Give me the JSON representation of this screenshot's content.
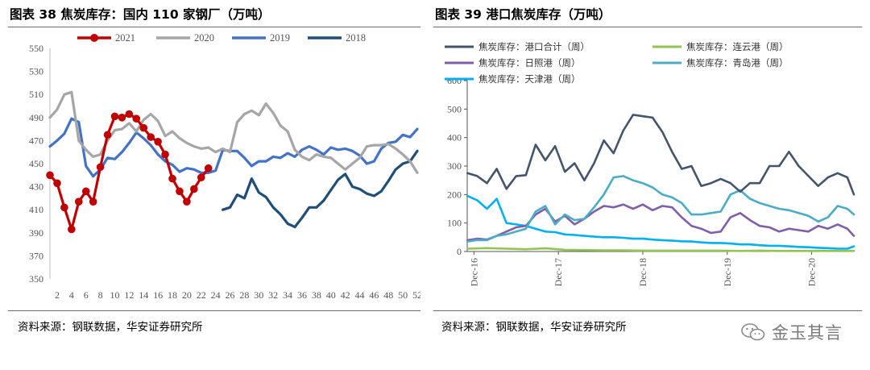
{
  "left": {
    "title": "图表 38  焦炭库存：国内 110 家钢厂（万吨）",
    "source": "资料来源：钢联数据，华安证券研究所"
  },
  "right": {
    "title": "图表 39  港口焦炭库存（万吨）",
    "source": "资料来源：钢联数据，华安证券研究所"
  },
  "watermark": {
    "text": "金玉其言",
    "icon": "wechat-icon"
  },
  "chart_data": [
    {
      "type": "line",
      "ylim": [
        350,
        550
      ],
      "yticks": [
        350,
        370,
        390,
        410,
        430,
        450,
        470,
        490,
        510,
        530,
        550
      ],
      "xlim": [
        1,
        52
      ],
      "xticks": [
        2,
        4,
        6,
        8,
        10,
        12,
        14,
        16,
        18,
        20,
        22,
        24,
        26,
        28,
        30,
        32,
        34,
        36,
        38,
        40,
        42,
        44,
        46,
        48,
        50,
        52
      ],
      "legend_position": "top",
      "series": [
        {
          "name": "2021",
          "color": "#c00000",
          "marker": "circle",
          "x": [
            1,
            2,
            3,
            4,
            5,
            6,
            7,
            8,
            9,
            10,
            11,
            12,
            13,
            14,
            15,
            16,
            17,
            18,
            19,
            20,
            21,
            22,
            23
          ],
          "y": [
            440,
            433,
            412,
            393,
            417,
            426,
            417,
            447,
            475,
            491,
            490,
            493,
            489,
            481,
            473,
            469,
            458,
            437,
            426,
            417,
            428,
            438,
            446
          ]
        },
        {
          "name": "2020",
          "color": "#a6a6a6",
          "marker": "none",
          "x": [
            1,
            2,
            3,
            4,
            5,
            6,
            7,
            8,
            9,
            10,
            11,
            12,
            13,
            14,
            15,
            16,
            17,
            18,
            19,
            20,
            21,
            22,
            23,
            24,
            25,
            26,
            27,
            28,
            29,
            30,
            31,
            32,
            33,
            34,
            35,
            36,
            37,
            38,
            39,
            40,
            41,
            42,
            43,
            44,
            45,
            46,
            47,
            48,
            49,
            50,
            51,
            52
          ],
          "y": [
            490,
            497,
            510,
            512,
            470,
            462,
            456,
            458,
            470,
            479,
            480,
            485,
            478,
            488,
            493,
            487,
            474,
            478,
            472,
            468,
            465,
            463,
            464,
            460,
            463,
            460,
            486,
            493,
            496,
            492,
            502,
            494,
            483,
            478,
            462,
            456,
            453,
            458,
            456,
            455,
            450,
            445,
            450,
            455,
            465,
            466,
            466,
            467,
            463,
            458,
            452,
            442
          ]
        },
        {
          "name": "2019",
          "color": "#4472c4",
          "marker": "none",
          "x": [
            1,
            2,
            3,
            4,
            5,
            6,
            7,
            8,
            9,
            10,
            11,
            12,
            13,
            14,
            15,
            16,
            17,
            18,
            19,
            20,
            21,
            22,
            23,
            24,
            25,
            26,
            27,
            28,
            29,
            30,
            31,
            32,
            33,
            34,
            35,
            36,
            37,
            38,
            39,
            40,
            41,
            42,
            43,
            44,
            45,
            46,
            47,
            48,
            49,
            50,
            51,
            52
          ],
          "y": [
            465,
            470,
            476,
            489,
            486,
            448,
            439,
            445,
            455,
            454,
            460,
            468,
            477,
            472,
            466,
            458,
            452,
            449,
            443,
            446,
            445,
            442,
            442,
            444,
            462,
            461,
            461,
            455,
            448,
            452,
            452,
            456,
            455,
            459,
            456,
            462,
            465,
            462,
            458,
            464,
            462,
            463,
            461,
            457,
            450,
            452,
            463,
            468,
            469,
            475,
            473,
            480
          ]
        },
        {
          "name": "2018",
          "color": "#1f4e79",
          "marker": "none",
          "x": [
            25,
            26,
            27,
            28,
            29,
            30,
            31,
            32,
            33,
            34,
            35,
            36,
            37,
            38,
            39,
            40,
            41,
            42,
            43,
            44,
            45,
            46,
            47,
            48,
            49,
            50,
            51,
            52
          ],
          "y": [
            410,
            412,
            423,
            420,
            437,
            425,
            421,
            412,
            406,
            398,
            395,
            403,
            412,
            412,
            418,
            427,
            436,
            441,
            430,
            428,
            424,
            422,
            426,
            435,
            445,
            450,
            452,
            461
          ]
        }
      ]
    },
    {
      "type": "line",
      "ylim": [
        0,
        600
      ],
      "yticks": [
        0,
        100,
        200,
        300,
        400,
        500,
        600
      ],
      "x_tick_labels": [
        "Dec-16",
        "Dec-17",
        "Dec-18",
        "Dec-19",
        "Dec-20"
      ],
      "x_tick_dates": [
        "2016-12-30",
        "2017-12-29",
        "2018-12-28",
        "2019-12-27",
        "2020-12-25"
      ],
      "x_range": [
        "2016-12-01",
        "2021-06-25"
      ],
      "legend_position": "top",
      "series": [
        {
          "name": "焦炭库存：港口合计（周）",
          "color": "#44546a",
          "x": [
            "2016-12-02",
            "2017-01-13",
            "2017-02-24",
            "2017-04-07",
            "2017-05-19",
            "2017-06-30",
            "2017-08-11",
            "2017-09-22",
            "2017-11-03",
            "2017-12-15",
            "2018-01-26",
            "2018-03-09",
            "2018-04-20",
            "2018-06-01",
            "2018-07-13",
            "2018-08-24",
            "2018-10-05",
            "2018-11-16",
            "2018-12-28",
            "2019-02-08",
            "2019-03-22",
            "2019-05-03",
            "2019-06-14",
            "2019-07-26",
            "2019-09-06",
            "2019-10-18",
            "2019-11-29",
            "2020-01-10",
            "2020-02-21",
            "2020-04-03",
            "2020-05-15",
            "2020-06-26",
            "2020-08-07",
            "2020-09-18",
            "2020-10-30",
            "2020-12-11",
            "2021-01-22",
            "2021-03-05",
            "2021-04-16",
            "2021-05-28",
            "2021-06-25"
          ],
          "y": [
            275,
            265,
            240,
            290,
            220,
            265,
            268,
            375,
            320,
            370,
            280,
            310,
            250,
            310,
            390,
            345,
            425,
            480,
            475,
            470,
            420,
            350,
            290,
            300,
            230,
            240,
            255,
            240,
            210,
            240,
            240,
            300,
            300,
            350,
            300,
            265,
            230,
            260,
            275,
            260,
            200
          ]
        },
        {
          "name": "焦炭库存：连云港（周）",
          "color": "#92c353",
          "x": [
            "2016-12-02",
            "2017-02-24",
            "2017-05-19",
            "2017-08-11",
            "2017-11-03",
            "2018-01-26",
            "2018-04-20",
            "2018-07-13",
            "2018-10-05",
            "2018-12-28",
            "2019-03-22",
            "2019-06-14",
            "2019-09-06",
            "2019-11-29",
            "2020-02-21",
            "2020-05-15",
            "2020-08-07",
            "2020-10-30",
            "2021-01-22",
            "2021-04-16",
            "2021-06-25"
          ],
          "y": [
            10,
            12,
            10,
            8,
            11,
            6,
            5,
            4,
            4,
            3,
            3,
            3,
            3,
            3,
            2,
            3,
            2,
            2,
            2,
            2,
            2
          ]
        },
        {
          "name": "焦炭库存：日照港（周）",
          "color": "#7f5fa9",
          "x": [
            "2016-12-02",
            "2017-01-13",
            "2017-02-24",
            "2017-04-07",
            "2017-05-19",
            "2017-06-30",
            "2017-08-11",
            "2017-09-22",
            "2017-11-03",
            "2017-12-15",
            "2018-01-26",
            "2018-03-09",
            "2018-04-20",
            "2018-06-01",
            "2018-07-13",
            "2018-08-24",
            "2018-10-05",
            "2018-11-16",
            "2018-12-28",
            "2019-02-08",
            "2019-03-22",
            "2019-05-03",
            "2019-06-14",
            "2019-07-26",
            "2019-09-06",
            "2019-10-18",
            "2019-11-29",
            "2020-01-10",
            "2020-02-21",
            "2020-04-03",
            "2020-05-15",
            "2020-06-26",
            "2020-08-07",
            "2020-09-18",
            "2020-10-30",
            "2020-12-11",
            "2021-01-22",
            "2021-03-05",
            "2021-04-16",
            "2021-05-28",
            "2021-06-25"
          ],
          "y": [
            40,
            45,
            42,
            55,
            70,
            85,
            90,
            130,
            150,
            105,
            125,
            95,
            115,
            140,
            160,
            155,
            165,
            150,
            165,
            145,
            160,
            155,
            120,
            90,
            80,
            65,
            70,
            120,
            135,
            110,
            90,
            85,
            70,
            80,
            75,
            70,
            90,
            80,
            95,
            80,
            55
          ]
        },
        {
          "name": "焦炭库存：青岛港（周）",
          "color": "#4bacc6",
          "x": [
            "2016-12-02",
            "2017-01-13",
            "2017-02-24",
            "2017-04-07",
            "2017-05-19",
            "2017-06-30",
            "2017-08-11",
            "2017-09-22",
            "2017-11-03",
            "2017-12-15",
            "2018-01-26",
            "2018-03-09",
            "2018-04-20",
            "2018-06-01",
            "2018-07-13",
            "2018-08-24",
            "2018-10-05",
            "2018-11-16",
            "2018-12-28",
            "2019-02-08",
            "2019-03-22",
            "2019-05-03",
            "2019-06-14",
            "2019-07-26",
            "2019-09-06",
            "2019-10-18",
            "2019-11-29",
            "2020-01-10",
            "2020-02-21",
            "2020-04-03",
            "2020-05-15",
            "2020-06-26",
            "2020-08-07",
            "2020-09-18",
            "2020-10-30",
            "2020-12-11",
            "2021-01-22",
            "2021-03-05",
            "2021-04-16",
            "2021-05-28",
            "2021-06-25"
          ],
          "y": [
            35,
            40,
            40,
            55,
            60,
            70,
            80,
            140,
            160,
            95,
            130,
            110,
            115,
            155,
            200,
            260,
            265,
            250,
            240,
            225,
            200,
            190,
            170,
            130,
            130,
            135,
            140,
            200,
            215,
            185,
            170,
            160,
            150,
            145,
            135,
            125,
            105,
            120,
            160,
            150,
            130
          ]
        },
        {
          "name": "焦炭库存：天津港（周）",
          "color": "#00b0f0",
          "x": [
            "2016-12-02",
            "2017-01-13",
            "2017-02-24",
            "2017-04-07",
            "2017-05-19",
            "2017-06-30",
            "2017-08-11",
            "2017-09-22",
            "2017-11-03",
            "2017-12-15",
            "2018-01-26",
            "2018-03-09",
            "2018-04-20",
            "2018-06-01",
            "2018-07-13",
            "2018-08-24",
            "2018-10-05",
            "2018-11-16",
            "2018-12-28",
            "2019-02-08",
            "2019-03-22",
            "2019-05-03",
            "2019-06-14",
            "2019-07-26",
            "2019-09-06",
            "2019-10-18",
            "2019-11-29",
            "2020-01-10",
            "2020-02-21",
            "2020-04-03",
            "2020-05-15",
            "2020-06-26",
            "2020-08-07",
            "2020-09-18",
            "2020-10-30",
            "2020-12-11",
            "2021-01-22",
            "2021-03-05",
            "2021-04-16",
            "2021-05-28",
            "2021-06-25"
          ],
          "y": [
            195,
            180,
            150,
            185,
            100,
            95,
            90,
            80,
            70,
            68,
            60,
            58,
            55,
            52,
            50,
            50,
            48,
            45,
            45,
            42,
            40,
            38,
            36,
            35,
            32,
            30,
            30,
            28,
            25,
            25,
            22,
            20,
            20,
            18,
            16,
            15,
            13,
            12,
            10,
            10,
            18
          ]
        }
      ]
    }
  ]
}
